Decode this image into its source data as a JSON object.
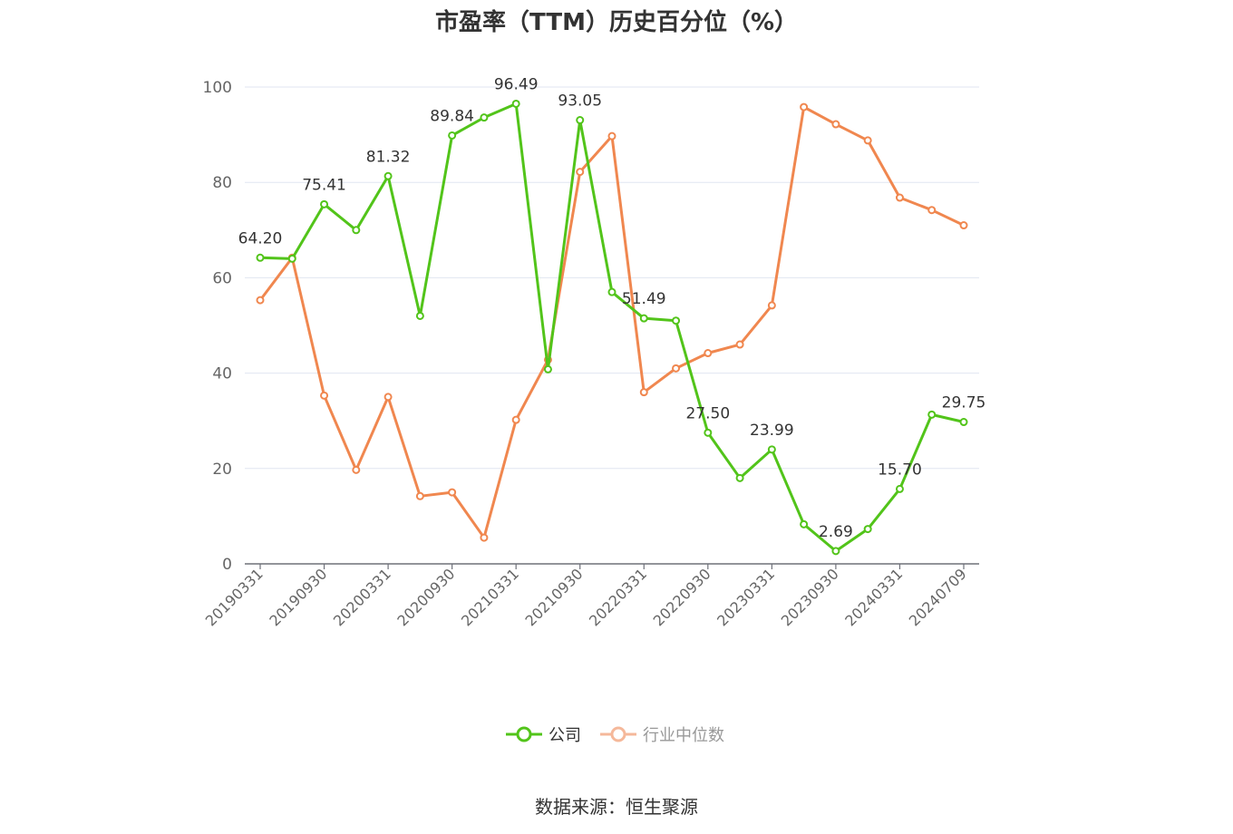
{
  "chart_data": {
    "type": "line",
    "title": "市盈率（TTM）历史百分位（%）",
    "source": "数据来源：恒生聚源",
    "ylim": [
      0,
      100
    ],
    "yticks": [
      0,
      20,
      40,
      60,
      80,
      100
    ],
    "grid": true,
    "legend_position": "bottom-center",
    "x": [
      "20190331",
      "20190630",
      "20190930",
      "20191231",
      "20200331",
      "20200630",
      "20200930",
      "20201231",
      "20210331",
      "20210630",
      "20210930",
      "20211231",
      "20220331",
      "20220630",
      "20220930",
      "20221231",
      "20230331",
      "20230630",
      "20230930",
      "20231231",
      "20240331",
      "20240630",
      "20240709"
    ],
    "x_tick_labels": [
      "20190331",
      "20190930",
      "20200331",
      "20200930",
      "20210331",
      "20210930",
      "20220331",
      "20220930",
      "20230331",
      "20230930",
      "20240331",
      "20240709"
    ],
    "series": [
      {
        "name": "公司",
        "color": "#52c41a",
        "values": [
          64.2,
          64.0,
          75.41,
          70.0,
          81.32,
          52.0,
          89.84,
          93.6,
          96.49,
          40.8,
          93.05,
          57.0,
          51.49,
          51.0,
          27.5,
          18.0,
          23.99,
          8.3,
          2.69,
          7.3,
          15.7,
          31.3,
          29.75
        ],
        "data_labels": {
          "0": "64.20",
          "2": "75.41",
          "4": "81.32",
          "6": "89.84",
          "8": "96.49",
          "10": "93.05",
          "12": "51.49",
          "14": "27.50",
          "16": "23.99",
          "18": "2.69",
          "20": "15.70",
          "22": "29.75"
        }
      },
      {
        "name": "行业中位数",
        "color": "#f0874f",
        "values": [
          55.3,
          64.2,
          35.3,
          19.7,
          35.0,
          14.2,
          15.0,
          5.5,
          30.2,
          42.8,
          82.2,
          89.7,
          36.0,
          41.0,
          44.2,
          46.0,
          54.2,
          95.8,
          92.2,
          88.8,
          76.8,
          74.2,
          71.0
        ]
      }
    ]
  }
}
